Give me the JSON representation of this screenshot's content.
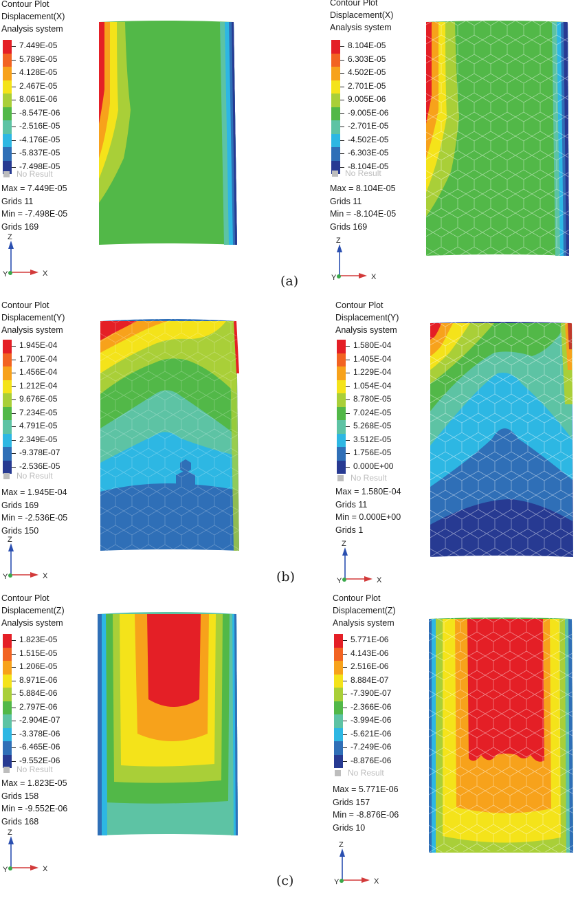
{
  "figure": {
    "captions": [
      "(a)",
      "(b)",
      "(c)"
    ],
    "no_result_label": "No Result",
    "axis_labels": {
      "x": "X",
      "y": "Y",
      "z": "Z"
    },
    "colors": {
      "scale": [
        "#e41f26",
        "#f26322",
        "#f7a21b",
        "#f4e31a",
        "#a9cf38",
        "#52b848",
        "#5dc3a4",
        "#2db7e3",
        "#2f6fb7",
        "#273a92"
      ],
      "no_result": "#bdbdbd"
    },
    "panels": [
      {
        "id": "a-left",
        "title_lines": [
          "Contour Plot",
          "Displacement(X)",
          "Analysis system"
        ],
        "legend_values": [
          "7.449E-05",
          "5.789E-05",
          "4.128E-05",
          "2.467E-05",
          "8.061E-06",
          "-8.547E-06",
          "-2.516E-05",
          "-4.176E-05",
          "-5.837E-05",
          "-7.498E-05"
        ],
        "max_line": "Max = 7.449E-05",
        "max_grid": "Grids 11",
        "min_line": "Min = -7.498E-05",
        "min_grid": "Grids 169"
      },
      {
        "id": "a-right",
        "title_lines": [
          "Contour Plot",
          "Displacement(X)",
          "Analysis system"
        ],
        "legend_values": [
          "8.104E-05",
          "6.303E-05",
          "4.502E-05",
          "2.701E-05",
          "9.005E-06",
          "-9.005E-06",
          "-2.701E-05",
          "-4.502E-05",
          "-6.303E-05",
          "-8.104E-05"
        ],
        "max_line": "Max = 8.104E-05",
        "max_grid": "Grids 11",
        "min_line": "Min = -8.104E-05",
        "min_grid": "Grids 169"
      },
      {
        "id": "b-left",
        "title_lines": [
          "Contour Plot",
          "Displacement(Y)",
          "Analysis system"
        ],
        "legend_values": [
          "1.945E-04",
          "1.700E-04",
          "1.456E-04",
          "1.212E-04",
          "9.676E-05",
          "7.234E-05",
          "4.791E-05",
          "2.349E-05",
          "-9.378E-07",
          "-2.536E-05"
        ],
        "max_line": "Max = 1.945E-04",
        "max_grid": "Grids 169",
        "min_line": "Min = -2.536E-05",
        "min_grid": "Grids 150"
      },
      {
        "id": "b-right",
        "title_lines": [
          "Contour Plot",
          "Displacement(Y)",
          "Analysis system"
        ],
        "legend_values": [
          "1.580E-04",
          "1.405E-04",
          "1.229E-04",
          "1.054E-04",
          "8.780E-05",
          "7.024E-05",
          "5.268E-05",
          "3.512E-05",
          "1.756E-05",
          "0.000E+00"
        ],
        "max_line": "Max = 1.580E-04",
        "max_grid": "Grids 11",
        "min_line": "Min = 0.000E+00",
        "min_grid": "Grids 1"
      },
      {
        "id": "c-left",
        "title_lines": [
          "Contour Plot",
          "Displacement(Z)",
          "Analysis system"
        ],
        "legend_values": [
          "1.823E-05",
          "1.515E-05",
          "1.206E-05",
          "8.971E-06",
          "5.884E-06",
          "2.797E-06",
          "-2.904E-07",
          "-3.378E-06",
          "-6.465E-06",
          "-9.552E-06"
        ],
        "max_line": "Max = 1.823E-05",
        "max_grid": "Grids 158",
        "min_line": "Min = -9.552E-06",
        "min_grid": "Grids 168"
      },
      {
        "id": "c-right",
        "title_lines": [
          "Contour Plot",
          "Displacement(Z)",
          "Analysis system"
        ],
        "legend_values": [
          "5.771E-06",
          "4.143E-06",
          "2.516E-06",
          "8.884E-07",
          "-7.390E-07",
          "-2.366E-06",
          "-3.994E-06",
          "-5.621E-06",
          "-7.249E-06",
          "-8.876E-06"
        ],
        "max_line": "Max = 5.771E-06",
        "max_grid": "Grids 157",
        "min_line": "Min = -8.876E-06",
        "min_grid": "Grids 10"
      }
    ]
  }
}
